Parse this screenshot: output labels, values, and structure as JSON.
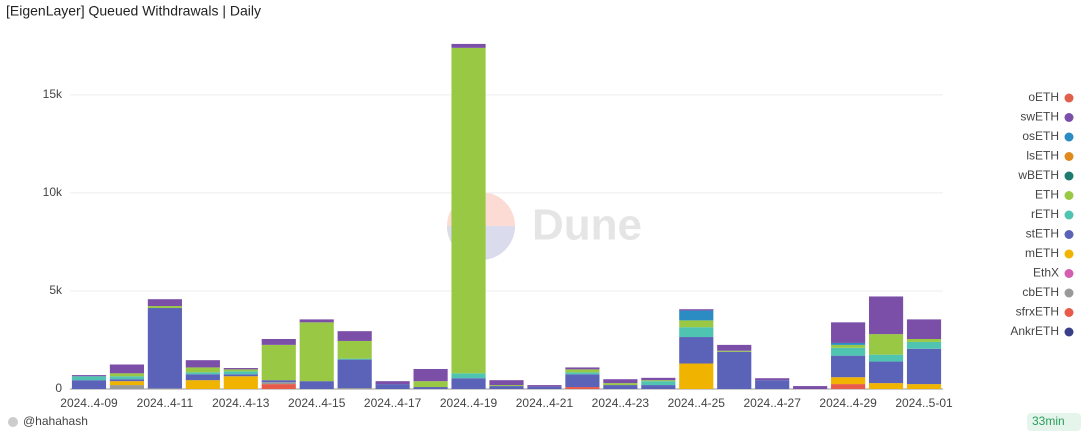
{
  "chart_data": {
    "type": "bar",
    "stacked": true,
    "title": "[EigenLayer] Queued Withdrawals | Daily",
    "watermark": "Dune",
    "footer": {
      "author": "@hahahash",
      "age": "33min"
    },
    "categories": [
      "2024..4-09",
      null,
      "2024..4-11",
      null,
      "2024..4-13",
      null,
      "2024..4-15",
      null,
      "2024..4-17",
      null,
      "2024..4-19",
      null,
      "2024..4-21",
      null,
      "2024..4-23",
      null,
      "2024..4-25",
      null,
      "2024..4-27",
      null,
      "2024..4-29",
      null,
      "2024..5-01"
    ],
    "ylim": [
      0,
      17800
    ],
    "yticks": [
      0,
      {
        "value": 5000,
        "label": "5k"
      },
      {
        "value": 10000,
        "label": "10k"
      },
      {
        "value": 15000,
        "label": "15k"
      }
    ],
    "grid": true,
    "legend": "right",
    "series": [
      {
        "name": "oETH",
        "color": "#e0604c",
        "values": [
          0,
          0,
          0,
          0,
          0,
          0,
          0,
          0,
          0,
          0,
          0,
          0,
          0,
          0,
          0,
          0,
          0,
          0,
          0,
          0,
          0,
          0,
          0
        ]
      },
      {
        "name": "swETH",
        "color": "#7b4fa8",
        "values": [
          60,
          450,
          350,
          370,
          70,
          300,
          150,
          500,
          150,
          620,
          200,
          250,
          80,
          100,
          200,
          120,
          70,
          300,
          100,
          150,
          1050,
          1920,
          1000
        ]
      },
      {
        "name": "osETH",
        "color": "#2b8cc4",
        "values": [
          0,
          0,
          0,
          0,
          0,
          0,
          0,
          0,
          0,
          0,
          0,
          0,
          0,
          0,
          0,
          0,
          500,
          0,
          0,
          0,
          100,
          0,
          0
        ]
      },
      {
        "name": "lsETH",
        "color": "#e08a1e",
        "values": [
          0,
          0,
          0,
          0,
          0,
          0,
          0,
          0,
          0,
          0,
          0,
          0,
          0,
          0,
          0,
          0,
          0,
          0,
          0,
          0,
          0,
          0,
          0
        ]
      },
      {
        "name": "wBETH",
        "color": "#1d7b6f",
        "values": [
          0,
          0,
          0,
          0,
          0,
          0,
          0,
          0,
          0,
          0,
          0,
          0,
          0,
          0,
          0,
          0,
          0,
          0,
          0,
          0,
          0,
          0,
          0
        ]
      },
      {
        "name": "ETH",
        "color": "#99c944",
        "values": [
          0,
          150,
          100,
          250,
          100,
          1800,
          3000,
          900,
          0,
          300,
          16600,
          50,
          0,
          150,
          100,
          50,
          350,
          50,
          0,
          0,
          150,
          1050,
          150
        ]
      },
      {
        "name": "rETH",
        "color": "#4fc4b0",
        "values": [
          200,
          150,
          0,
          100,
          150,
          0,
          0,
          50,
          0,
          0,
          250,
          0,
          0,
          100,
          0,
          200,
          500,
          0,
          0,
          0,
          400,
          350,
          350
        ]
      },
      {
        "name": "stETH",
        "color": "#5b63b8",
        "values": [
          450,
          100,
          4100,
          300,
          100,
          100,
          400,
          1450,
          250,
          100,
          550,
          150,
          120,
          650,
          200,
          200,
          1350,
          1900,
          450,
          0,
          1100,
          1100,
          1800
        ]
      },
      {
        "name": "mETH",
        "color": "#f0b400",
        "values": [
          0,
          200,
          0,
          450,
          650,
          0,
          0,
          0,
          0,
          0,
          0,
          0,
          0,
          0,
          0,
          0,
          1300,
          0,
          0,
          0,
          350,
          300,
          250
        ]
      },
      {
        "name": "EthX",
        "color": "#d45fb0",
        "values": [
          0,
          0,
          0,
          0,
          0,
          0,
          0,
          0,
          0,
          0,
          0,
          0,
          0,
          0,
          0,
          0,
          0,
          0,
          0,
          0,
          0,
          0,
          0
        ]
      },
      {
        "name": "cbETH",
        "color": "#999999",
        "values": [
          0,
          200,
          30,
          0,
          0,
          100,
          0,
          50,
          0,
          0,
          0,
          0,
          0,
          0,
          0,
          0,
          0,
          0,
          0,
          0,
          0,
          0,
          0
        ]
      },
      {
        "name": "sfrxETH",
        "color": "#e85a4a",
        "values": [
          0,
          0,
          0,
          0,
          0,
          250,
          0,
          0,
          0,
          0,
          0,
          0,
          0,
          100,
          0,
          0,
          0,
          0,
          0,
          0,
          250,
          0,
          0
        ]
      },
      {
        "name": "AnkrETH",
        "color": "#3a3f8a",
        "values": [
          0,
          0,
          0,
          0,
          0,
          0,
          0,
          0,
          0,
          0,
          0,
          0,
          0,
          0,
          0,
          0,
          0,
          0,
          0,
          0,
          0,
          0,
          0
        ]
      }
    ]
  }
}
